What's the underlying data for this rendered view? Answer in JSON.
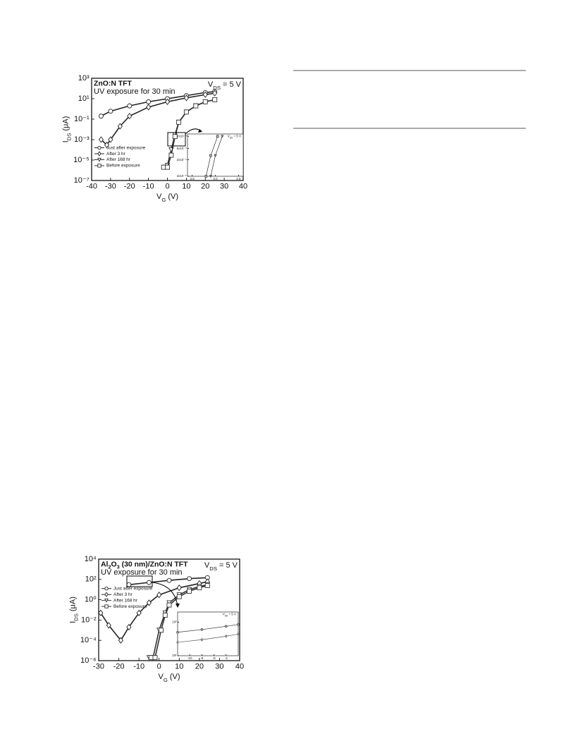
{
  "chart_data": [
    {
      "type": "line",
      "title": "ZnO:N TFT",
      "subtitle": "UV exposure for 30 min",
      "annotation": [
        "V",
        "DS",
        " = 5 V"
      ],
      "xlabel": [
        "V",
        "G",
        " (V)"
      ],
      "ylabel": [
        "I",
        "DS",
        " (μA)"
      ],
      "xlim": [
        -40,
        40
      ],
      "xticks": [
        -40,
        -30,
        -20,
        -10,
        0,
        10,
        20,
        30,
        40
      ],
      "ylim": [
        1e-07,
        1000
      ],
      "log_y": true,
      "yticks": [
        {
          "value": 1000,
          "label": "10³"
        },
        {
          "value": 10,
          "label": "10¹"
        },
        {
          "value": 0.1,
          "label": "10⁻¹"
        },
        {
          "value": 0.001,
          "label": "10⁻³"
        },
        {
          "value": 1e-05,
          "label": "10⁻⁵"
        },
        {
          "value": 1e-07,
          "label": "10⁻⁷"
        }
      ],
      "legend": "left",
      "series": [
        {
          "name": "Just after exposure",
          "marker": "circle",
          "color": "#222",
          "x": [
            -35,
            -30,
            -20,
            -10,
            0,
            10,
            20,
            25
          ],
          "values": [
            0.2,
            0.6,
            2,
            5,
            10,
            20,
            40,
            50
          ]
        },
        {
          "name": "After 3 hr",
          "marker": "diamond",
          "color": "#222",
          "x": [
            -35,
            -32,
            -30,
            -25,
            -20,
            -10,
            0,
            10,
            20,
            25
          ],
          "values": [
            0.001,
            0.0003,
            0.001,
            0.02,
            0.2,
            1.5,
            5,
            12,
            25,
            35
          ]
        },
        {
          "name": "After 168 hr",
          "marker": "triangle",
          "color": "#333",
          "x": [
            -1,
            0,
            2,
            4,
            6,
            10,
            15,
            20,
            25
          ],
          "values": [
            2e-06,
            3e-06,
            0.0001,
            0.003,
            0.05,
            0.5,
            2,
            5,
            8
          ]
        },
        {
          "name": "Before exposure",
          "marker": "square",
          "color": "#333",
          "x": [
            -2,
            0,
            2,
            4,
            6,
            10,
            15,
            20,
            25
          ],
          "values": [
            2e-06,
            2e-06,
            3e-05,
            0.002,
            0.05,
            0.5,
            2,
            5,
            8
          ]
        }
      ]
    },
    {
      "type": "line",
      "title": [
        "Al",
        "2",
        "O",
        "3",
        " (30 nm)/ZnO:N TFT"
      ],
      "subtitle": "UV exposure for 30 min",
      "annotation": [
        "V",
        "DS",
        " = 5 V"
      ],
      "xlabel": [
        "V",
        "G",
        " (V)"
      ],
      "ylabel": [
        "I",
        "DS",
        " (μA)"
      ],
      "xlim": [
        -30,
        40
      ],
      "xticks": [
        -30,
        -20,
        -10,
        0,
        10,
        20,
        30,
        40
      ],
      "ylim": [
        1e-06,
        10000
      ],
      "log_y": true,
      "yticks": [
        {
          "value": 10000,
          "label": "10⁴"
        },
        {
          "value": 100,
          "label": "10²"
        },
        {
          "value": 1,
          "label": "10⁰"
        },
        {
          "value": 0.01,
          "label": "10⁻²"
        },
        {
          "value": 0.0001,
          "label": "10⁻⁴"
        },
        {
          "value": 1e-06,
          "label": "10⁻⁶"
        }
      ],
      "legend": "left",
      "series": [
        {
          "name": "Just after exposure",
          "marker": "circle",
          "color": "#222",
          "x": [
            -15,
            -5,
            5,
            15,
            24
          ],
          "values": [
            30,
            50,
            80,
            120,
            150
          ]
        },
        {
          "name": "After 3 hr",
          "marker": "diamond",
          "color": "#222",
          "x": [
            -29,
            -25,
            -19,
            -15,
            -10,
            -5,
            0,
            10,
            20,
            24
          ],
          "values": [
            0.05,
            0.003,
            0.0001,
            0.002,
            0.05,
            0.5,
            3,
            15,
            40,
            60
          ]
        },
        {
          "name": "After 168 hr",
          "marker": "triangle",
          "color": "#333",
          "x": [
            -5,
            -3,
            0,
            3,
            5,
            10,
            15,
            20,
            24
          ],
          "values": [
            2e-06,
            2e-06,
            0.001,
            0.05,
            0.5,
            3,
            10,
            20,
            30
          ]
        },
        {
          "name": "Before exposure",
          "marker": "square",
          "color": "#333",
          "x": [
            -4,
            -2,
            1,
            3,
            5,
            10,
            15,
            20,
            24
          ],
          "values": [
            2e-06,
            2e-06,
            0.001,
            0.03,
            0.3,
            2,
            7,
            15,
            25
          ]
        }
      ]
    },
    {
      "type": "line",
      "annotation": [
        "V",
        "DS",
        " = 5 V"
      ],
      "xlim": [
        3.4,
        4.6
      ],
      "xticks": [
        3.5,
        {
          "value": 4,
          "label": "4.0"
        },
        4.5
      ],
      "ylim": [
        4e-05,
        0.0025
      ],
      "log_y": true,
      "yticks": [
        {
          "value": 4e-05,
          "label": "4x10⁻⁵"
        },
        {
          "value": 0.0002,
          "label": "2x10⁻⁴"
        },
        {
          "value": 0.0006,
          "label": "6x10⁻⁴"
        },
        {
          "value": 0.002,
          "label": "2x10⁻³"
        }
      ],
      "series": [
        {
          "marker": "square",
          "color": "#333",
          "x": [
            3.8,
            3.9,
            4.05
          ],
          "values": [
            4e-05,
            0.0003,
            0.002
          ]
        },
        {
          "marker": "triangle",
          "color": "#333",
          "x": [
            3.9,
            4.0,
            4.15
          ],
          "values": [
            4e-05,
            0.0003,
            0.002
          ]
        }
      ]
    },
    {
      "type": "line",
      "annotation": [
        "V",
        "DS",
        " = 5 V"
      ],
      "xlim": [
        -12,
        -2
      ],
      "xticks": [
        -10,
        -8,
        -6,
        -4
      ],
      "ylim": [
        10,
        200
      ],
      "log_y": true,
      "yticks": [
        {
          "value": 100,
          "label": "10²"
        },
        {
          "value": 10,
          "label": "10¹"
        }
      ],
      "series": [
        {
          "marker": "circle",
          "color": "#333",
          "x": [
            -12,
            -8,
            -4,
            -2
          ],
          "values": [
            50,
            60,
            75,
            85
          ]
        },
        {
          "marker": "diamond",
          "color": "#555",
          "x": [
            -12,
            -8,
            -4,
            -2
          ],
          "values": [
            25,
            30,
            38,
            44
          ]
        }
      ]
    }
  ]
}
